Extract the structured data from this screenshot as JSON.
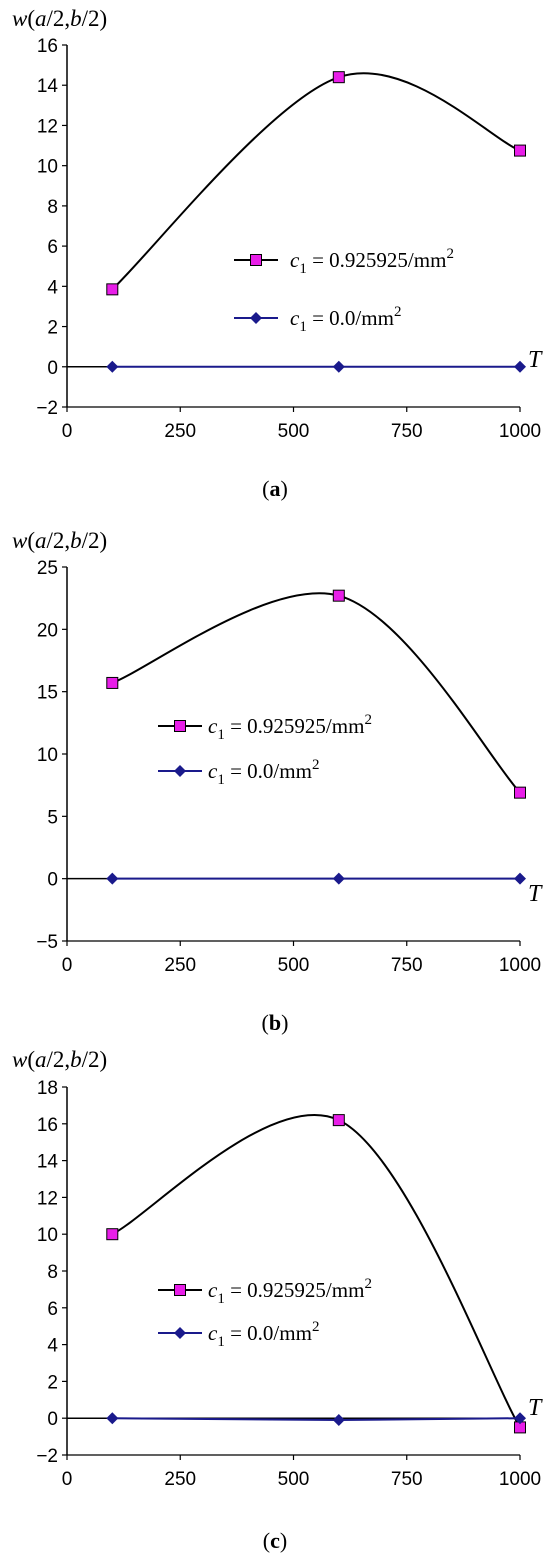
{
  "chart_data": [
    {
      "type": "line",
      "panel": "a",
      "caption": {
        "open": "(",
        "letter": "a",
        "close": ")"
      },
      "ylabel": "w(a/2,b/2)",
      "xlabel": "T",
      "xlim": [
        0,
        1000
      ],
      "ylim": [
        -2,
        16
      ],
      "xticks": [
        0,
        250,
        500,
        750,
        1000
      ],
      "yticks": [
        -2,
        0,
        2,
        4,
        6,
        8,
        10,
        12,
        14,
        16
      ],
      "grid": false,
      "legend_position": "center-right",
      "series": [
        {
          "name": "c1 = 0.925925/mm2",
          "label": {
            "var": "c",
            "sub": "1",
            "value": " = 0.925925/mm",
            "sup": "2"
          },
          "marker": "square",
          "color": "#000000",
          "marker_color": "#e81ee8",
          "smooth": true,
          "x": [
            100,
            600,
            1000
          ],
          "y": [
            3.85,
            14.4,
            10.75
          ]
        },
        {
          "name": "c1 = 0.0/mm2",
          "label": {
            "var": "c",
            "sub": "1",
            "value": " = 0.0/mm",
            "sup": "2"
          },
          "marker": "diamond",
          "color": "#1a1a8c",
          "marker_color": "#1a1a8c",
          "smooth": false,
          "x": [
            100,
            600,
            1000
          ],
          "y": [
            0,
            0,
            0
          ]
        }
      ]
    },
    {
      "type": "line",
      "panel": "b",
      "caption": {
        "open": "(",
        "letter": "b",
        "close": ")"
      },
      "ylabel": "w(a/2,b/2)",
      "xlabel": "T",
      "xlim": [
        0,
        1000
      ],
      "ylim": [
        -5,
        25
      ],
      "xticks": [
        0,
        250,
        500,
        750,
        1000
      ],
      "yticks": [
        -5,
        0,
        5,
        10,
        15,
        20,
        25
      ],
      "grid": false,
      "legend_position": "center",
      "series": [
        {
          "name": "c1 = 0.925925/mm2",
          "label": {
            "var": "c",
            "sub": "1",
            "value": " = 0.925925/mm",
            "sup": "2"
          },
          "marker": "square",
          "color": "#000000",
          "marker_color": "#e81ee8",
          "smooth": true,
          "x": [
            100,
            600,
            1000
          ],
          "y": [
            15.7,
            22.7,
            6.9
          ]
        },
        {
          "name": "c1 = 0.0/mm2",
          "label": {
            "var": "c",
            "sub": "1",
            "value": " = 0.0/mm",
            "sup": "2"
          },
          "marker": "diamond",
          "color": "#1a1a8c",
          "marker_color": "#1a1a8c",
          "smooth": false,
          "x": [
            100,
            600,
            1000
          ],
          "y": [
            0,
            0,
            0
          ]
        }
      ]
    },
    {
      "type": "line",
      "panel": "c",
      "caption": {
        "open": "(",
        "letter": "c",
        "close": ")"
      },
      "ylabel": "w(a/2,b/2)",
      "xlabel": "T",
      "xlim": [
        0,
        1000
      ],
      "ylim": [
        -2,
        18
      ],
      "xticks": [
        0,
        250,
        500,
        750,
        1000
      ],
      "yticks": [
        -2,
        0,
        2,
        4,
        6,
        8,
        10,
        12,
        14,
        16,
        18
      ],
      "grid": false,
      "legend_position": "center",
      "series": [
        {
          "name": "c1 = 0.925925/mm2",
          "label": {
            "var": "c",
            "sub": "1",
            "value": " = 0.925925/mm",
            "sup": "2"
          },
          "marker": "square",
          "color": "#000000",
          "marker_color": "#e81ee8",
          "smooth": true,
          "x": [
            100,
            600,
            1000
          ],
          "y": [
            10.0,
            16.2,
            -0.5
          ]
        },
        {
          "name": "c1 = 0.0/mm2",
          "label": {
            "var": "c",
            "sub": "1",
            "value": " = 0.0/mm",
            "sup": "2"
          },
          "marker": "diamond",
          "color": "#1a1a8c",
          "marker_color": "#1a1a8c",
          "smooth": false,
          "x": [
            100,
            600,
            1000
          ],
          "y": [
            0,
            -0.1,
            0
          ]
        }
      ]
    }
  ]
}
